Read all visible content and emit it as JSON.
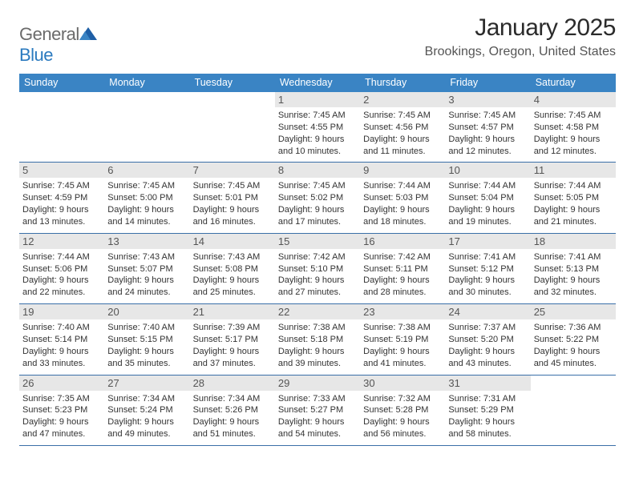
{
  "brand": {
    "general": "General",
    "blue": "Blue"
  },
  "title": "January 2025",
  "location": "Brookings, Oregon, United States",
  "colors": {
    "header_bg": "#3a84c4",
    "row_border": "#3a6fa8",
    "day_head_bg": "#e7e7e7",
    "brand_gray": "#6b6b6b",
    "brand_blue": "#2b7abf"
  },
  "typography": {
    "title_fontsize": 30,
    "location_fontsize": 16,
    "header_fontsize": 12.5,
    "daynum_fontsize": 13,
    "body_fontsize": 11
  },
  "day_names": [
    "Sunday",
    "Monday",
    "Tuesday",
    "Wednesday",
    "Thursday",
    "Friday",
    "Saturday"
  ],
  "weeks": [
    [
      {
        "num": "",
        "sunrise": "",
        "sunset": "",
        "daylight": ""
      },
      {
        "num": "",
        "sunrise": "",
        "sunset": "",
        "daylight": ""
      },
      {
        "num": "",
        "sunrise": "",
        "sunset": "",
        "daylight": ""
      },
      {
        "num": "1",
        "sunrise": "Sunrise: 7:45 AM",
        "sunset": "Sunset: 4:55 PM",
        "daylight": "Daylight: 9 hours and 10 minutes."
      },
      {
        "num": "2",
        "sunrise": "Sunrise: 7:45 AM",
        "sunset": "Sunset: 4:56 PM",
        "daylight": "Daylight: 9 hours and 11 minutes."
      },
      {
        "num": "3",
        "sunrise": "Sunrise: 7:45 AM",
        "sunset": "Sunset: 4:57 PM",
        "daylight": "Daylight: 9 hours and 12 minutes."
      },
      {
        "num": "4",
        "sunrise": "Sunrise: 7:45 AM",
        "sunset": "Sunset: 4:58 PM",
        "daylight": "Daylight: 9 hours and 12 minutes."
      }
    ],
    [
      {
        "num": "5",
        "sunrise": "Sunrise: 7:45 AM",
        "sunset": "Sunset: 4:59 PM",
        "daylight": "Daylight: 9 hours and 13 minutes."
      },
      {
        "num": "6",
        "sunrise": "Sunrise: 7:45 AM",
        "sunset": "Sunset: 5:00 PM",
        "daylight": "Daylight: 9 hours and 14 minutes."
      },
      {
        "num": "7",
        "sunrise": "Sunrise: 7:45 AM",
        "sunset": "Sunset: 5:01 PM",
        "daylight": "Daylight: 9 hours and 16 minutes."
      },
      {
        "num": "8",
        "sunrise": "Sunrise: 7:45 AM",
        "sunset": "Sunset: 5:02 PM",
        "daylight": "Daylight: 9 hours and 17 minutes."
      },
      {
        "num": "9",
        "sunrise": "Sunrise: 7:44 AM",
        "sunset": "Sunset: 5:03 PM",
        "daylight": "Daylight: 9 hours and 18 minutes."
      },
      {
        "num": "10",
        "sunrise": "Sunrise: 7:44 AM",
        "sunset": "Sunset: 5:04 PM",
        "daylight": "Daylight: 9 hours and 19 minutes."
      },
      {
        "num": "11",
        "sunrise": "Sunrise: 7:44 AM",
        "sunset": "Sunset: 5:05 PM",
        "daylight": "Daylight: 9 hours and 21 minutes."
      }
    ],
    [
      {
        "num": "12",
        "sunrise": "Sunrise: 7:44 AM",
        "sunset": "Sunset: 5:06 PM",
        "daylight": "Daylight: 9 hours and 22 minutes."
      },
      {
        "num": "13",
        "sunrise": "Sunrise: 7:43 AM",
        "sunset": "Sunset: 5:07 PM",
        "daylight": "Daylight: 9 hours and 24 minutes."
      },
      {
        "num": "14",
        "sunrise": "Sunrise: 7:43 AM",
        "sunset": "Sunset: 5:08 PM",
        "daylight": "Daylight: 9 hours and 25 minutes."
      },
      {
        "num": "15",
        "sunrise": "Sunrise: 7:42 AM",
        "sunset": "Sunset: 5:10 PM",
        "daylight": "Daylight: 9 hours and 27 minutes."
      },
      {
        "num": "16",
        "sunrise": "Sunrise: 7:42 AM",
        "sunset": "Sunset: 5:11 PM",
        "daylight": "Daylight: 9 hours and 28 minutes."
      },
      {
        "num": "17",
        "sunrise": "Sunrise: 7:41 AM",
        "sunset": "Sunset: 5:12 PM",
        "daylight": "Daylight: 9 hours and 30 minutes."
      },
      {
        "num": "18",
        "sunrise": "Sunrise: 7:41 AM",
        "sunset": "Sunset: 5:13 PM",
        "daylight": "Daylight: 9 hours and 32 minutes."
      }
    ],
    [
      {
        "num": "19",
        "sunrise": "Sunrise: 7:40 AM",
        "sunset": "Sunset: 5:14 PM",
        "daylight": "Daylight: 9 hours and 33 minutes."
      },
      {
        "num": "20",
        "sunrise": "Sunrise: 7:40 AM",
        "sunset": "Sunset: 5:15 PM",
        "daylight": "Daylight: 9 hours and 35 minutes."
      },
      {
        "num": "21",
        "sunrise": "Sunrise: 7:39 AM",
        "sunset": "Sunset: 5:17 PM",
        "daylight": "Daylight: 9 hours and 37 minutes."
      },
      {
        "num": "22",
        "sunrise": "Sunrise: 7:38 AM",
        "sunset": "Sunset: 5:18 PM",
        "daylight": "Daylight: 9 hours and 39 minutes."
      },
      {
        "num": "23",
        "sunrise": "Sunrise: 7:38 AM",
        "sunset": "Sunset: 5:19 PM",
        "daylight": "Daylight: 9 hours and 41 minutes."
      },
      {
        "num": "24",
        "sunrise": "Sunrise: 7:37 AM",
        "sunset": "Sunset: 5:20 PM",
        "daylight": "Daylight: 9 hours and 43 minutes."
      },
      {
        "num": "25",
        "sunrise": "Sunrise: 7:36 AM",
        "sunset": "Sunset: 5:22 PM",
        "daylight": "Daylight: 9 hours and 45 minutes."
      }
    ],
    [
      {
        "num": "26",
        "sunrise": "Sunrise: 7:35 AM",
        "sunset": "Sunset: 5:23 PM",
        "daylight": "Daylight: 9 hours and 47 minutes."
      },
      {
        "num": "27",
        "sunrise": "Sunrise: 7:34 AM",
        "sunset": "Sunset: 5:24 PM",
        "daylight": "Daylight: 9 hours and 49 minutes."
      },
      {
        "num": "28",
        "sunrise": "Sunrise: 7:34 AM",
        "sunset": "Sunset: 5:26 PM",
        "daylight": "Daylight: 9 hours and 51 minutes."
      },
      {
        "num": "29",
        "sunrise": "Sunrise: 7:33 AM",
        "sunset": "Sunset: 5:27 PM",
        "daylight": "Daylight: 9 hours and 54 minutes."
      },
      {
        "num": "30",
        "sunrise": "Sunrise: 7:32 AM",
        "sunset": "Sunset: 5:28 PM",
        "daylight": "Daylight: 9 hours and 56 minutes."
      },
      {
        "num": "31",
        "sunrise": "Sunrise: 7:31 AM",
        "sunset": "Sunset: 5:29 PM",
        "daylight": "Daylight: 9 hours and 58 minutes."
      },
      {
        "num": "",
        "sunrise": "",
        "sunset": "",
        "daylight": ""
      }
    ]
  ]
}
